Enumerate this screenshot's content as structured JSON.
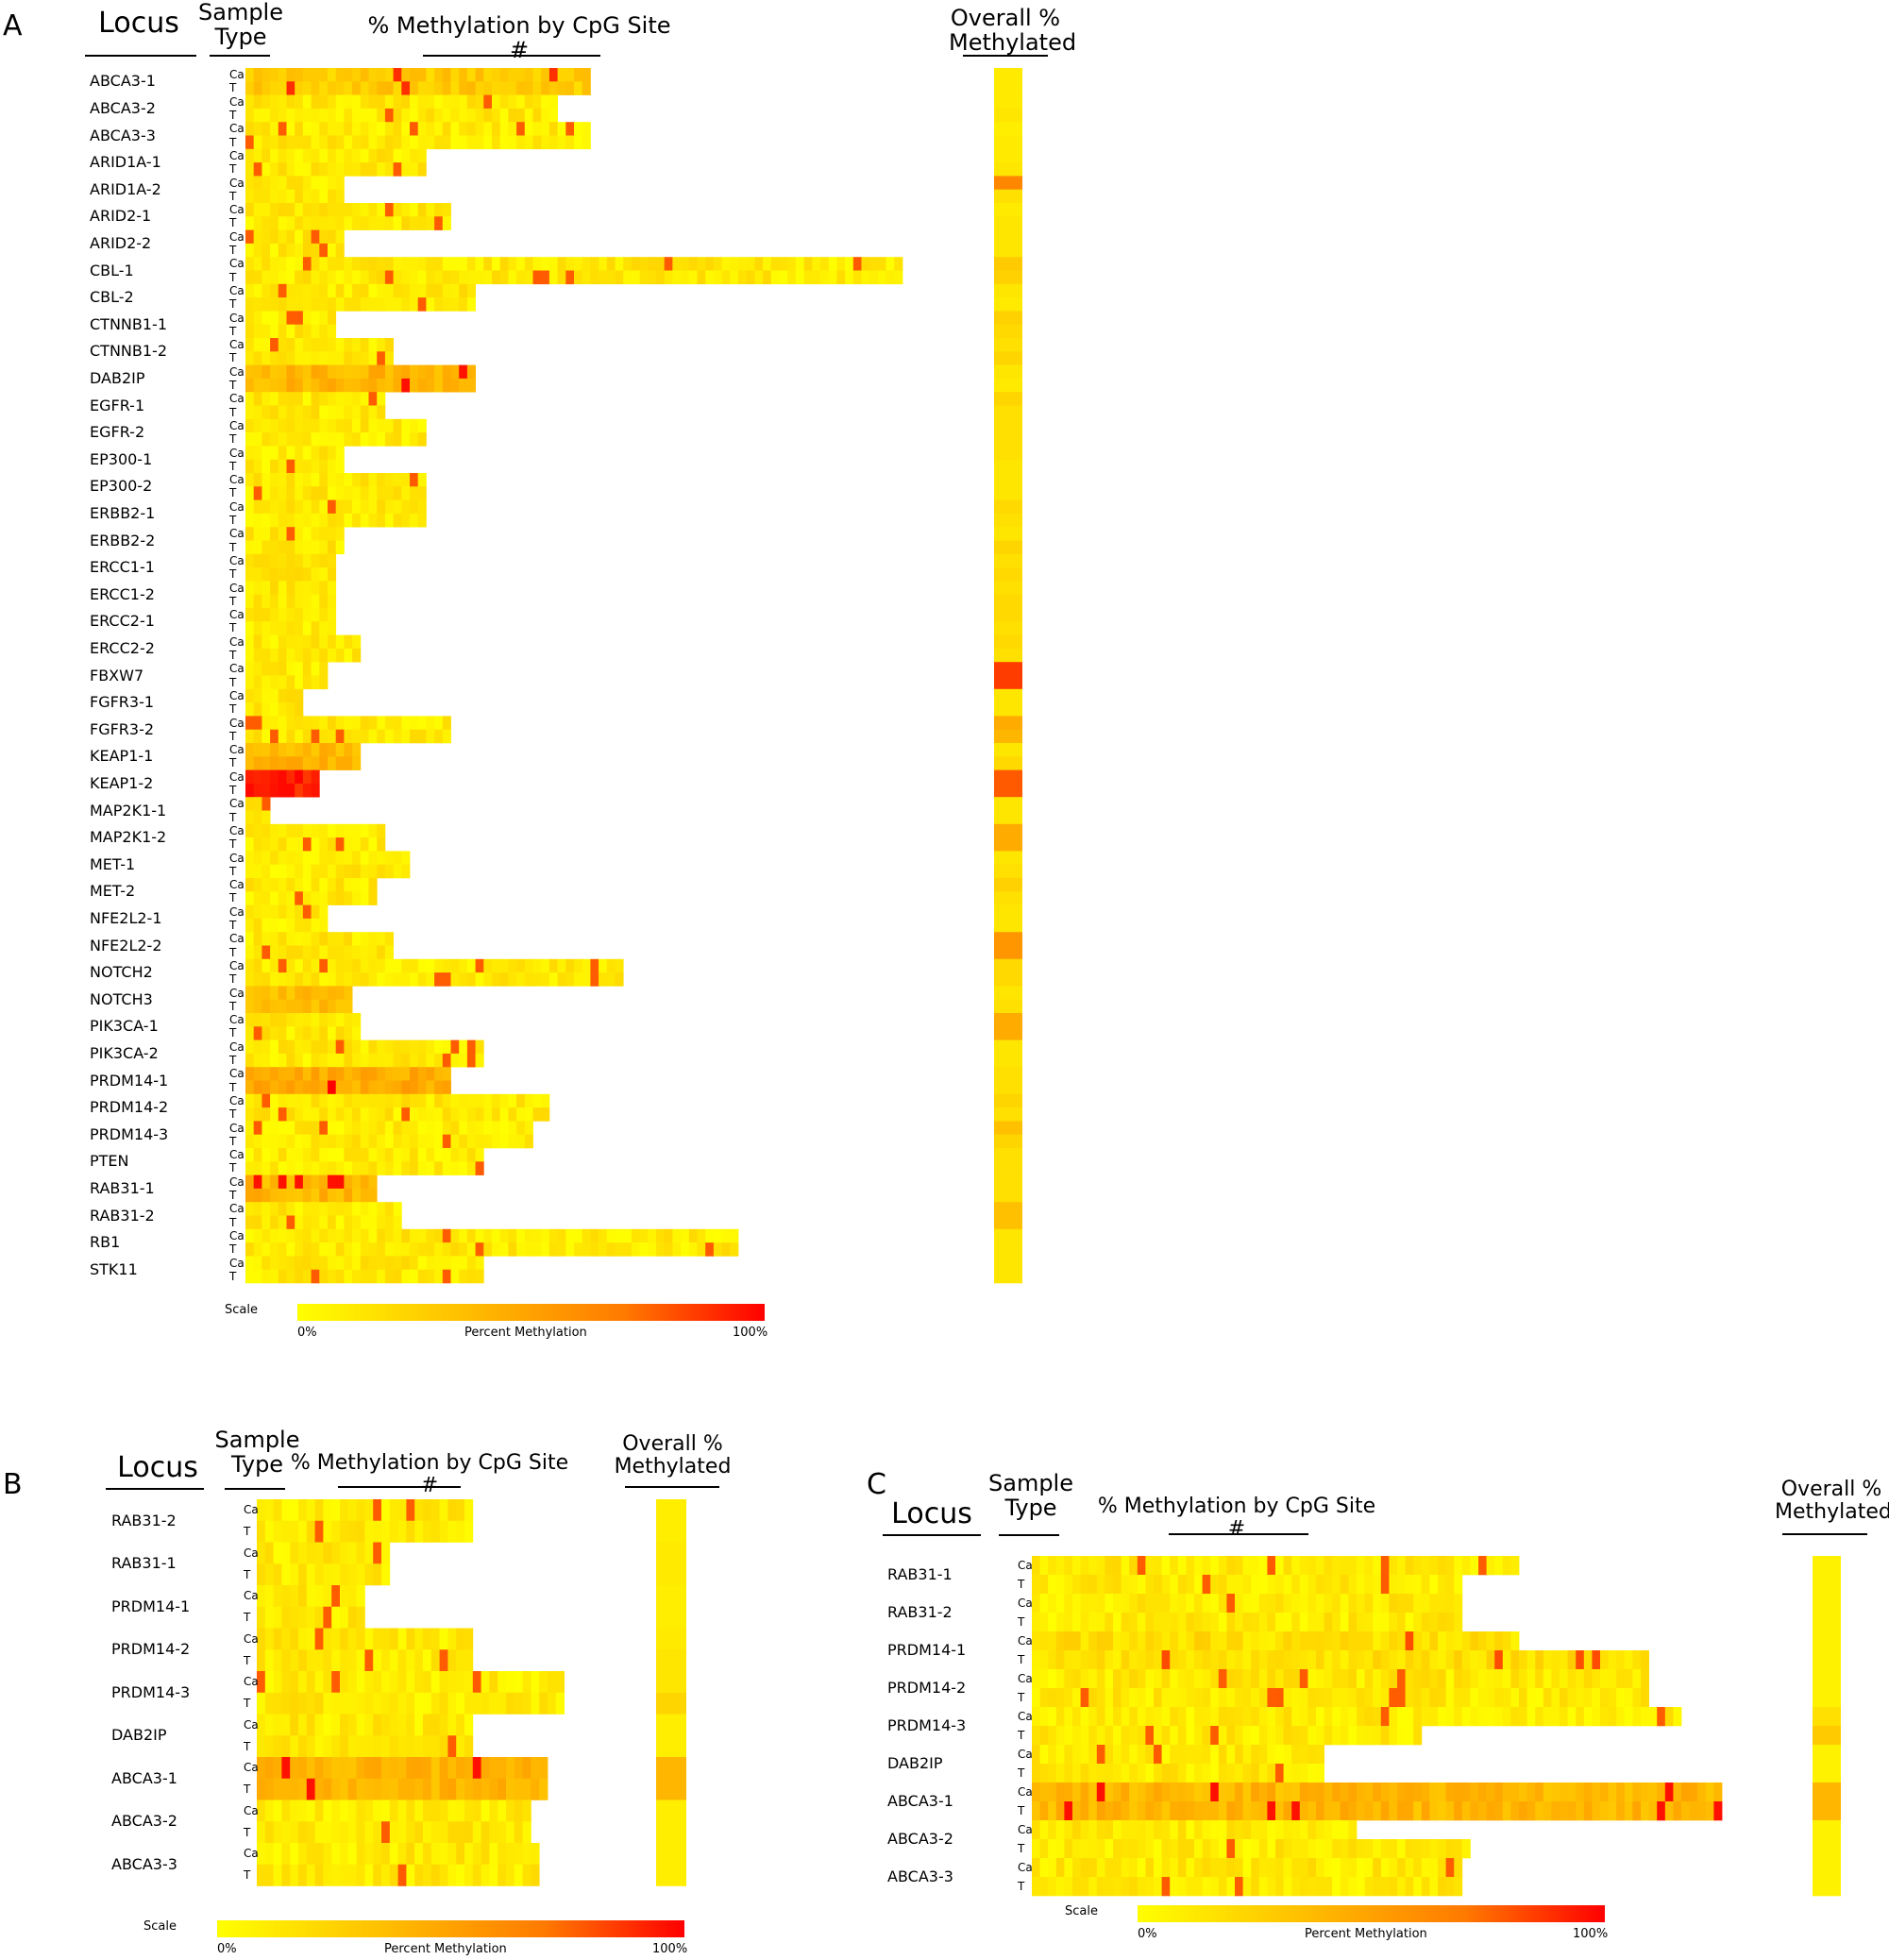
{
  "headers": {
    "locus": "Locus",
    "sample_type": "Sample Type",
    "cpg": "% Methylation by CpG Site #",
    "overall": "Overall % Methylated"
  },
  "sample_types": [
    "Ca",
    "T"
  ],
  "scale": {
    "label": "Scale",
    "min": "0%",
    "mid": "Percent Methylation",
    "max": "100%",
    "colors": [
      "#ffff00",
      "#ffc000",
      "#ff7a00",
      "#ff0000"
    ]
  },
  "chart_data": [
    {
      "type": "heatmap",
      "panel": "A",
      "loci": [
        "ABCA3-1",
        "ABCA3-2",
        "ABCA3-3",
        "ARID1A-1",
        "ARID1A-2",
        "ARID2-1",
        "ARID2-2",
        "CBL-1",
        "CBL-2",
        "CTNNB1-1",
        "CTNNB1-2",
        "DAB2IP",
        "EGFR-1",
        "EGFR-2",
        "EP300-1",
        "EP300-2",
        "ERBB2-1",
        "ERBB2-2",
        "ERCC1-1",
        "ERCC1-2",
        "ERCC2-1",
        "ERCC2-2",
        "FBXW7",
        "FGFR3-1",
        "FGFR3-2",
        "KEAP1-1",
        "KEAP1-2",
        "MAP2K1-1",
        "MAP2K1-2",
        "MET-1",
        "MET-2",
        "NFE2L2-1",
        "NFE2L2-2",
        "NOTCH2",
        "NOTCH3",
        "PIK3CA-1",
        "PIK3CA-2",
        "PRDM14-1",
        "PRDM14-2",
        "PRDM14-3",
        "PTEN",
        "RAB31-1",
        "RAB31-2",
        "RB1",
        "STK11"
      ],
      "sites_ca": [
        42,
        38,
        42,
        22,
        12,
        25,
        12,
        80,
        28,
        11,
        18,
        28,
        17,
        22,
        12,
        22,
        22,
        12,
        11,
        11,
        11,
        14,
        10,
        7,
        25,
        14,
        9,
        3,
        17,
        20,
        16,
        10,
        18,
        46,
        13,
        14,
        29,
        25,
        37,
        35,
        29,
        16,
        19,
        60,
        29
      ],
      "sites_t": [
        42,
        38,
        42,
        22,
        12,
        25,
        12,
        80,
        28,
        11,
        18,
        28,
        17,
        22,
        12,
        22,
        22,
        12,
        11,
        11,
        11,
        14,
        10,
        7,
        25,
        14,
        9,
        3,
        17,
        20,
        16,
        10,
        18,
        46,
        13,
        14,
        29,
        25,
        37,
        35,
        29,
        16,
        19,
        60,
        29
      ],
      "overall_ca": [
        0.1,
        0.1,
        0.08,
        0.1,
        0.55,
        0.1,
        0.12,
        0.25,
        0.12,
        0.22,
        0.15,
        0.12,
        0.2,
        0.15,
        0.15,
        0.12,
        0.18,
        0.12,
        0.15,
        0.15,
        0.18,
        0.18,
        0.8,
        0.12,
        0.4,
        0.12,
        0.7,
        0.12,
        0.4,
        0.12,
        0.22,
        0.12,
        0.5,
        0.18,
        0.12,
        0.4,
        0.12,
        0.15,
        0.2,
        0.3,
        0.15,
        0.15,
        0.3,
        0.12,
        0.12
      ],
      "overall_t": [
        0.1,
        0.12,
        0.1,
        0.12,
        0.15,
        0.12,
        0.12,
        0.22,
        0.1,
        0.18,
        0.2,
        0.1,
        0.15,
        0.15,
        0.12,
        0.12,
        0.15,
        0.2,
        0.18,
        0.18,
        0.15,
        0.15,
        0.8,
        0.12,
        0.35,
        0.18,
        0.7,
        0.12,
        0.4,
        0.15,
        0.15,
        0.12,
        0.5,
        0.18,
        0.15,
        0.4,
        0.12,
        0.15,
        0.15,
        0.2,
        0.15,
        0.15,
        0.3,
        0.12,
        0.12
      ],
      "overall_scale": "0-1 fraction methylated"
    },
    {
      "type": "heatmap",
      "panel": "B",
      "loci": [
        "RAB31-2",
        "RAB31-1",
        "PRDM14-1",
        "PRDM14-2",
        "PRDM14-3",
        "DAB2IP",
        "ABCA3-1",
        "ABCA3-2",
        "ABCA3-3"
      ],
      "sites_ca": [
        26,
        16,
        13,
        26,
        37,
        26,
        35,
        33,
        34
      ],
      "sites_t": [
        26,
        16,
        13,
        26,
        37,
        26,
        35,
        33,
        34
      ],
      "overall_ca": [
        0.08,
        0.1,
        0.08,
        0.1,
        0.12,
        0.08,
        0.35,
        0.08,
        0.08
      ],
      "overall_t": [
        0.08,
        0.1,
        0.08,
        0.12,
        0.2,
        0.08,
        0.35,
        0.08,
        0.08
      ]
    },
    {
      "type": "heatmap",
      "panel": "C",
      "loci": [
        "RAB31-1",
        "RAB31-2",
        "PRDM14-1",
        "PRDM14-2",
        "PRDM14-3",
        "DAB2IP",
        "ABCA3-1",
        "ABCA3-2",
        "ABCA3-3"
      ],
      "sites_ca": [
        60,
        53,
        60,
        76,
        80,
        36,
        85,
        40,
        53
      ],
      "sites_t": [
        53,
        53,
        76,
        76,
        48,
        36,
        85,
        54,
        53
      ],
      "overall_ca": [
        0.06,
        0.06,
        0.06,
        0.06,
        0.15,
        0.06,
        0.35,
        0.06,
        0.06
      ],
      "overall_t": [
        0.06,
        0.06,
        0.06,
        0.06,
        0.25,
        0.06,
        0.35,
        0.06,
        0.06
      ]
    }
  ]
}
